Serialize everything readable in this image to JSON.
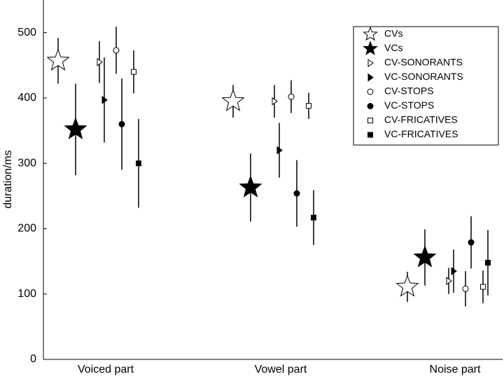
{
  "chart_data": {
    "type": "scatter",
    "y_label": "duration/ms",
    "categories": [
      "Voiced part",
      "Vowel part",
      "Noise part"
    ],
    "ylim": [
      0,
      550
    ],
    "yticks": [
      0,
      100,
      200,
      300,
      400,
      500
    ],
    "legend": "upper right",
    "series": [
      {
        "name": "CVs",
        "color": "#000000",
        "marker": "star",
        "filled": false,
        "values": [
          457,
          395,
          111
        ],
        "errors": [
          35,
          25,
          23
        ]
      },
      {
        "name": "VCs",
        "color": "#000000",
        "marker": "star",
        "filled": true,
        "values": [
          352,
          263,
          156
        ],
        "errors": [
          70,
          52,
          43
        ]
      },
      {
        "name": "CV-SONORANTS",
        "color": "#000000",
        "marker": "triangle",
        "filled": false,
        "values": [
          455,
          395,
          120
        ],
        "errors": [
          32,
          25,
          20
        ]
      },
      {
        "name": "VC-SONORANTS",
        "color": "#000000",
        "marker": "triangle",
        "filled": true,
        "values": [
          397,
          320,
          135
        ],
        "errors": [
          65,
          42,
          33
        ]
      },
      {
        "name": "CV-STOPS",
        "color": "#000000",
        "marker": "circle",
        "filled": false,
        "values": [
          473,
          402,
          108
        ],
        "errors": [
          36,
          25,
          27
        ]
      },
      {
        "name": "VC-STOPS",
        "color": "#000000",
        "marker": "circle",
        "filled": true,
        "values": [
          360,
          254,
          179
        ],
        "errors": [
          70,
          51,
          40
        ]
      },
      {
        "name": "CV-FRICATIVES",
        "color": "#000000",
        "marker": "square",
        "filled": false,
        "values": [
          440,
          388,
          111
        ],
        "errors": [
          33,
          20,
          25
        ]
      },
      {
        "name": "VC-FRICATIVES",
        "color": "#000000",
        "marker": "square",
        "filled": true,
        "values": [
          300,
          217,
          148
        ],
        "errors": [
          68,
          42,
          50
        ]
      }
    ]
  }
}
